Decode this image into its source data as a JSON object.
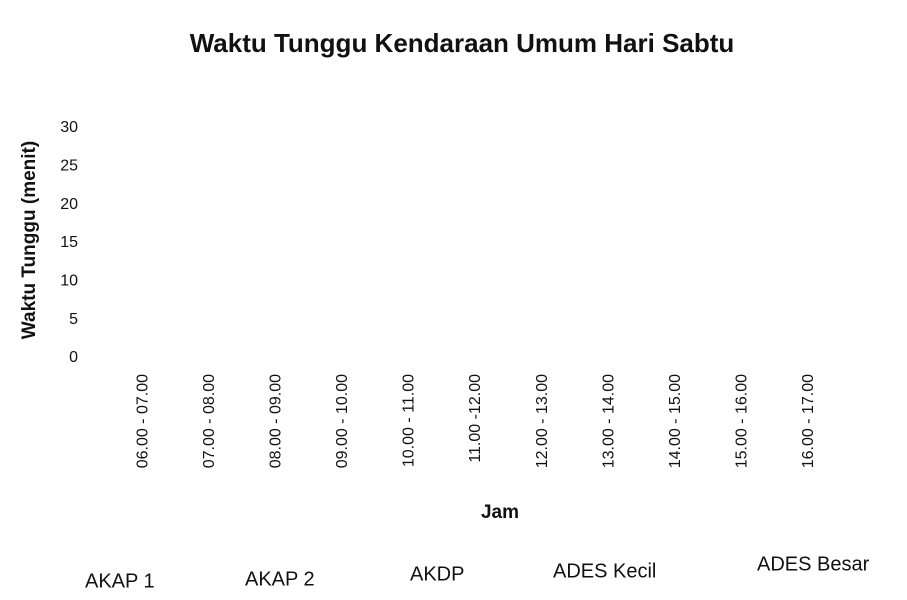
{
  "chart_data": {
    "type": "line",
    "title": "Waktu Tunggu Kendaraan Umum Hari Sabtu",
    "x_label": "Jam",
    "y_label": "Waktu Tunggu (menit)",
    "categories": [
      "06.00 - 07.00",
      "07.00 - 08.00",
      "08.00 - 09.00",
      "09.00 - 10.00",
      "10.00 - 11.00",
      "11.00 -12.00",
      "12.00 - 13.00",
      "13.00 - 14.00",
      "14.00 - 15.00",
      "15.00 - 16.00",
      "16.00 - 17.00"
    ],
    "series": [
      {
        "name": "AKAP 1",
        "values": [
          null,
          null,
          null,
          null,
          null,
          null,
          null,
          null,
          null,
          null,
          null
        ]
      },
      {
        "name": "AKAP 2",
        "values": [
          null,
          null,
          null,
          null,
          null,
          null,
          null,
          null,
          null,
          null,
          null
        ]
      },
      {
        "name": "AKDP",
        "values": [
          null,
          null,
          null,
          null,
          null,
          null,
          null,
          null,
          null,
          null,
          null
        ]
      },
      {
        "name": "ADES Kecil",
        "values": [
          null,
          null,
          null,
          null,
          null,
          null,
          null,
          null,
          null,
          null,
          null
        ]
      },
      {
        "name": "ADES Besar",
        "values": [
          null,
          null,
          null,
          null,
          null,
          null,
          null,
          null,
          null,
          null,
          null
        ]
      }
    ],
    "ylim": [
      0,
      30
    ],
    "yticks": [
      0,
      5,
      10,
      15,
      20,
      25,
      30
    ],
    "grid": false
  }
}
